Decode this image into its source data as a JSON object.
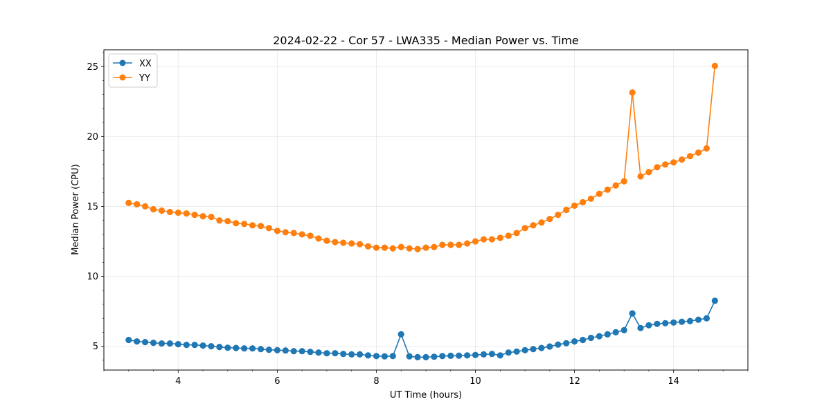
{
  "chart_data": {
    "type": "line",
    "title": "2024-02-22 - Cor 57 - LWA335 - Median Power vs. Time",
    "xlabel": "UT Time (hours)",
    "ylabel": "Median Power (CPU)",
    "xlim": [
      2.5,
      15.5
    ],
    "ylim": [
      3.3,
      26.2
    ],
    "xticks": [
      4,
      6,
      8,
      10,
      12,
      14
    ],
    "yticks": [
      5,
      10,
      15,
      20,
      25
    ],
    "grid": true,
    "legend": "top-left",
    "series": [
      {
        "name": "XX",
        "color": "#1f77b4",
        "x": [
          3.0,
          3.167,
          3.333,
          3.5,
          3.667,
          3.833,
          4.0,
          4.167,
          4.333,
          4.5,
          4.667,
          4.833,
          5.0,
          5.167,
          5.333,
          5.5,
          5.667,
          5.833,
          6.0,
          6.167,
          6.333,
          6.5,
          6.667,
          6.833,
          7.0,
          7.167,
          7.333,
          7.5,
          7.667,
          7.833,
          8.0,
          8.167,
          8.333,
          8.5,
          8.667,
          8.833,
          9.0,
          9.167,
          9.333,
          9.5,
          9.667,
          9.833,
          10.0,
          10.167,
          10.333,
          10.5,
          10.667,
          10.833,
          11.0,
          11.167,
          11.333,
          11.5,
          11.667,
          11.833,
          12.0,
          12.167,
          12.333,
          12.5,
          12.667,
          12.833,
          13.0,
          13.167,
          13.333,
          13.5,
          13.667,
          13.833,
          14.0,
          14.167,
          14.333,
          14.5,
          14.667,
          14.833
        ],
        "y": [
          5.45,
          5.35,
          5.3,
          5.25,
          5.2,
          5.2,
          5.15,
          5.1,
          5.1,
          5.05,
          5.0,
          4.95,
          4.9,
          4.88,
          4.85,
          4.85,
          4.8,
          4.75,
          4.72,
          4.7,
          4.65,
          4.65,
          4.6,
          4.55,
          4.5,
          4.5,
          4.45,
          4.42,
          4.42,
          4.35,
          4.3,
          4.28,
          4.3,
          5.85,
          4.28,
          4.22,
          4.22,
          4.25,
          4.3,
          4.32,
          4.33,
          4.35,
          4.38,
          4.42,
          4.45,
          4.35,
          4.55,
          4.62,
          4.72,
          4.8,
          4.88,
          4.98,
          5.12,
          5.22,
          5.35,
          5.45,
          5.6,
          5.72,
          5.85,
          6.0,
          6.15,
          7.35,
          6.3,
          6.5,
          6.6,
          6.65,
          6.7,
          6.75,
          6.8,
          6.9,
          7.0,
          8.25
        ]
      },
      {
        "name": "YY",
        "color": "#ff7f0e",
        "x": [
          3.0,
          3.167,
          3.333,
          3.5,
          3.667,
          3.833,
          4.0,
          4.167,
          4.333,
          4.5,
          4.667,
          4.833,
          5.0,
          5.167,
          5.333,
          5.5,
          5.667,
          5.833,
          6.0,
          6.167,
          6.333,
          6.5,
          6.667,
          6.833,
          7.0,
          7.167,
          7.333,
          7.5,
          7.667,
          7.833,
          8.0,
          8.167,
          8.333,
          8.5,
          8.667,
          8.833,
          9.0,
          9.167,
          9.333,
          9.5,
          9.667,
          9.833,
          10.0,
          10.167,
          10.333,
          10.5,
          10.667,
          10.833,
          11.0,
          11.167,
          11.333,
          11.5,
          11.667,
          11.833,
          12.0,
          12.167,
          12.333,
          12.5,
          12.667,
          12.833,
          13.0,
          13.167,
          13.333,
          13.5,
          13.667,
          13.833,
          14.0,
          14.167,
          14.333,
          14.5,
          14.667,
          14.833
        ],
        "y": [
          15.25,
          15.15,
          15.0,
          14.8,
          14.7,
          14.6,
          14.55,
          14.5,
          14.4,
          14.3,
          14.25,
          14.0,
          13.95,
          13.8,
          13.75,
          13.65,
          13.6,
          13.45,
          13.25,
          13.15,
          13.1,
          13.0,
          12.9,
          12.7,
          12.55,
          12.45,
          12.4,
          12.35,
          12.3,
          12.15,
          12.05,
          12.05,
          12.0,
          12.1,
          12.0,
          11.95,
          12.05,
          12.1,
          12.25,
          12.25,
          12.25,
          12.35,
          12.5,
          12.65,
          12.65,
          12.75,
          12.9,
          13.1,
          13.45,
          13.65,
          13.85,
          14.1,
          14.4,
          14.75,
          15.05,
          15.3,
          15.55,
          15.9,
          16.2,
          16.5,
          16.8,
          23.15,
          17.15,
          17.45,
          17.8,
          18.0,
          18.15,
          18.35,
          18.6,
          18.85,
          19.15,
          25.05
        ]
      }
    ]
  }
}
